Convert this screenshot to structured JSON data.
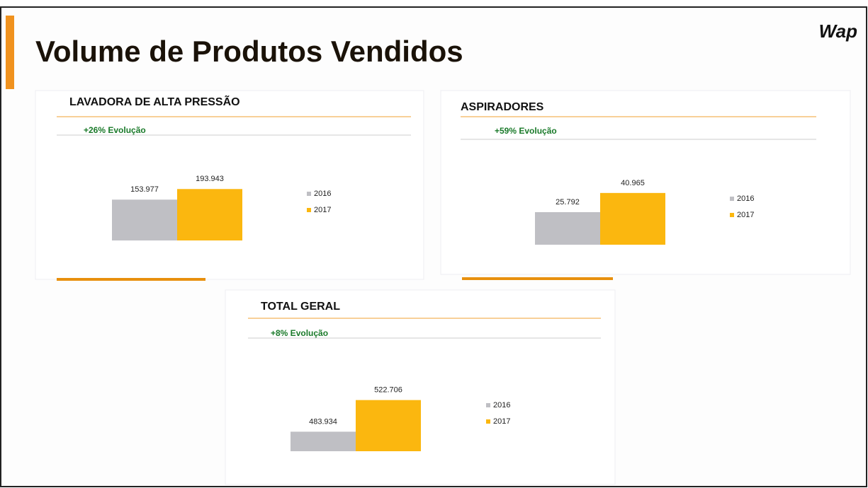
{
  "title": "Volume de Produtos Vendidos",
  "logo": "Wap",
  "chart_data": [
    {
      "type": "bar",
      "title": "LAVADORA DE ALTA PRESSÃO",
      "subtitle": "+26% Evolução",
      "ylim": [
        0,
        200000
      ],
      "series": [
        {
          "name": "2016",
          "color": "#bfbfc4",
          "values": [
            153977
          ],
          "value_labels": [
            "153.977"
          ]
        },
        {
          "name": "2017",
          "color": "#fbb70f",
          "values": [
            193943
          ],
          "value_labels": [
            "193.943"
          ]
        }
      ]
    },
    {
      "type": "bar",
      "title": "ASPIRADORES",
      "subtitle": "+59% Evolução",
      "ylim": [
        0,
        42000
      ],
      "series": [
        {
          "name": "2016",
          "color": "#bfbfc4",
          "values": [
            25792
          ],
          "value_labels": [
            "25.792"
          ]
        },
        {
          "name": "2017",
          "color": "#fbb70f",
          "values": [
            40965
          ],
          "value_labels": [
            "40.965"
          ]
        }
      ]
    },
    {
      "type": "bar",
      "title": "TOTAL GERAL",
      "subtitle": "+8% Evolução",
      "ylim": [
        460000,
        525000
      ],
      "series": [
        {
          "name": "2016",
          "color": "#bfbfc4",
          "values": [
            483934
          ],
          "value_labels": [
            "483.934"
          ]
        },
        {
          "name": "2017",
          "color": "#fbb70f",
          "values": [
            522706
          ],
          "value_labels": [
            "522.706"
          ]
        }
      ]
    }
  ]
}
